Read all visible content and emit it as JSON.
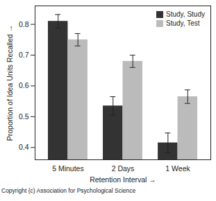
{
  "chart_data": {
    "type": "bar",
    "categories": [
      "5 Minutes",
      "2 Days",
      "1 Week"
    ],
    "series": [
      {
        "name": "Study, Study",
        "color": "#333333",
        "values": [
          0.81,
          0.535,
          0.415
        ],
        "errors": [
          0.022,
          0.03,
          0.032
        ]
      },
      {
        "name": "Study, Test",
        "color": "#bbbbbb",
        "values": [
          0.75,
          0.68,
          0.565
        ],
        "errors": [
          0.02,
          0.02,
          0.022
        ]
      }
    ],
    "x_label": "Retention Interval",
    "y_label": "Proportion of Idea Units Recalled",
    "ylim": [
      0.36,
      0.86
    ],
    "yticks": [
      0.4,
      0.5,
      0.6,
      0.7,
      0.8
    ],
    "legend": "top-right",
    "caption": "Copyright (c) Association for Psychological Science"
  }
}
